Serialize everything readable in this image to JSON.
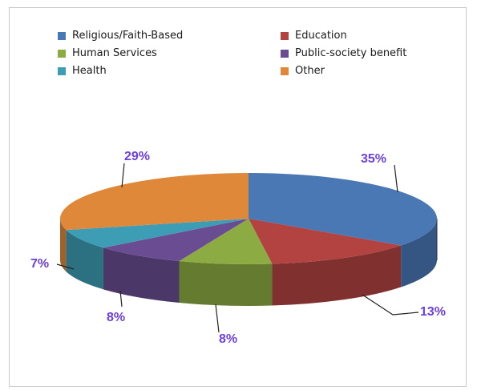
{
  "chart_data": {
    "type": "pie",
    "title": "",
    "legend_position": "top",
    "categories": [
      "Religious/Faith-Based",
      "Education",
      "Human Services",
      "Public-society benefit",
      "Health",
      "Other"
    ],
    "values": [
      35,
      13,
      8,
      8,
      7,
      29
    ],
    "labels": [
      "35%",
      "13%",
      "8%",
      "8%",
      "7%",
      "29%"
    ],
    "colors": [
      "#4a78b4",
      "#b24340",
      "#8cab42",
      "#6a4c92",
      "#3d9db5",
      "#e0883a"
    ]
  }
}
